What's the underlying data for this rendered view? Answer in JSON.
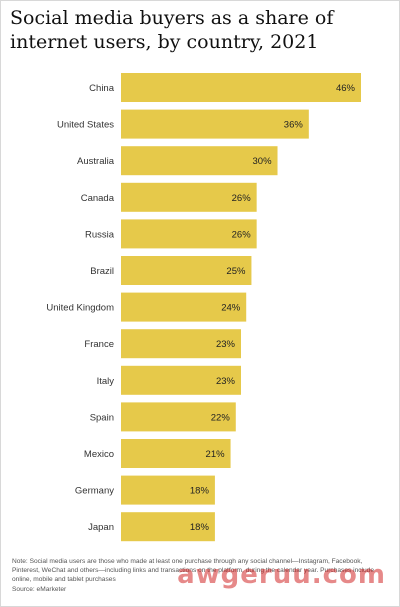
{
  "title": "Social media buyers as a share of\ninternet users, by country, 2021",
  "note": "Note: Social media users are those who made at least one purchase through any social channel—Instagram, Facebook, Pinterest, WeChat and others—including links and transactions on the platform, during the calendar year. Purchases include online, mobile and tablet purchases",
  "source": "Source: eMarketer",
  "watermark": "awgeruu.com",
  "colors": {
    "bar": "#e6c94a",
    "text": "#333333"
  },
  "chart_data": {
    "type": "bar",
    "orientation": "horizontal",
    "categories": [
      "China",
      "United States",
      "Australia",
      "Canada",
      "Russia",
      "Brazil",
      "United Kingdom",
      "France",
      "Italy",
      "Spain",
      "Mexico",
      "Germany",
      "Japan"
    ],
    "values": [
      46,
      36,
      30,
      26,
      26,
      25,
      24,
      23,
      23,
      22,
      21,
      18,
      18
    ],
    "value_labels": [
      "46%",
      "36%",
      "30%",
      "26%",
      "26%",
      "25%",
      "24%",
      "23%",
      "23%",
      "22%",
      "21%",
      "18%",
      "18%"
    ],
    "unit": "%",
    "xlim": [
      0,
      46
    ],
    "grid": false,
    "legend": "none"
  }
}
